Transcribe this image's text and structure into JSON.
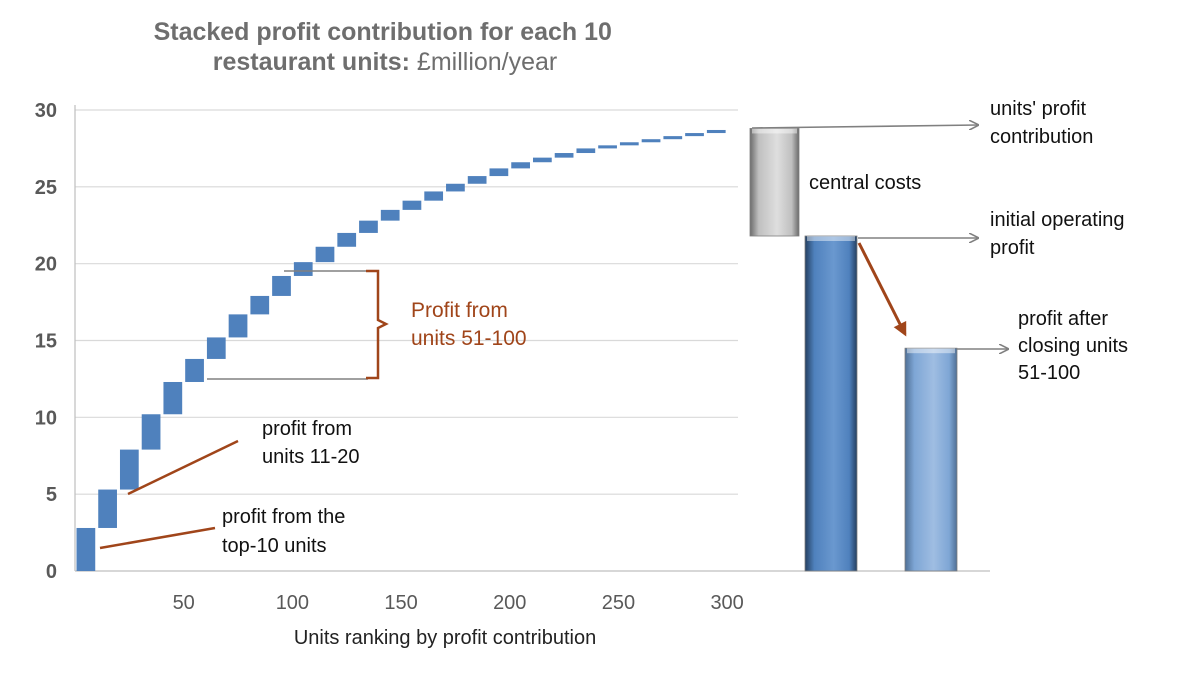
{
  "chart_data": {
    "type": "bar",
    "title_bold": "Stacked profit contribution for each 10 restaurant units:",
    "title_rest": "£million/year",
    "xlabel": "Units ranking by profit contribution",
    "ylabel": "",
    "ylim": [
      0,
      30
    ],
    "yticks": [
      "0",
      "5",
      "10",
      "15",
      "20",
      "25",
      "30"
    ],
    "xticks": [
      "50",
      "100",
      "150",
      "200",
      "250",
      "300"
    ],
    "xtick_values": [
      50,
      100,
      150,
      200,
      250,
      300
    ],
    "grid": true,
    "steps": {
      "name": "stacked profit per 10 units",
      "color": "#4f81bd",
      "x_end": [
        10,
        20,
        30,
        40,
        50,
        60,
        70,
        80,
        90,
        100,
        110,
        120,
        130,
        140,
        150,
        160,
        170,
        180,
        190,
        200,
        210,
        220,
        230,
        240,
        250,
        260,
        270,
        280,
        290,
        300
      ],
      "cumulative": [
        2.8,
        5.3,
        7.9,
        10.2,
        12.3,
        13.8,
        15.2,
        16.7,
        17.9,
        19.2,
        20.1,
        21.1,
        22.0,
        22.8,
        23.5,
        24.1,
        24.7,
        25.2,
        25.7,
        26.2,
        26.6,
        26.9,
        27.2,
        27.5,
        27.7,
        27.9,
        28.1,
        28.3,
        28.5,
        28.7
      ]
    },
    "waterfall": [
      {
        "name": "central costs",
        "bottom": 21.8,
        "top": 28.8,
        "color": "#c0c0c0"
      },
      {
        "name": "initial operating profit",
        "bottom": 0,
        "top": 21.8,
        "color": "#4f81bd"
      },
      {
        "name": "profit after closing units 51-100",
        "bottom": 0,
        "top": 14.5,
        "color": "#7ea6d5"
      }
    ],
    "annotations": {
      "top10": [
        "profit from the",
        "top-10 units"
      ],
      "units11_20": [
        "profit from",
        "units 11-20"
      ],
      "units51_100": [
        "Profit from",
        "units 51-100"
      ],
      "central_costs": "central costs",
      "units_profit": [
        "units' profit",
        "contribution"
      ],
      "initial_profit": [
        "initial operating",
        "profit"
      ],
      "after_closing": [
        "profit after",
        "closing units",
        "51-100"
      ]
    }
  }
}
